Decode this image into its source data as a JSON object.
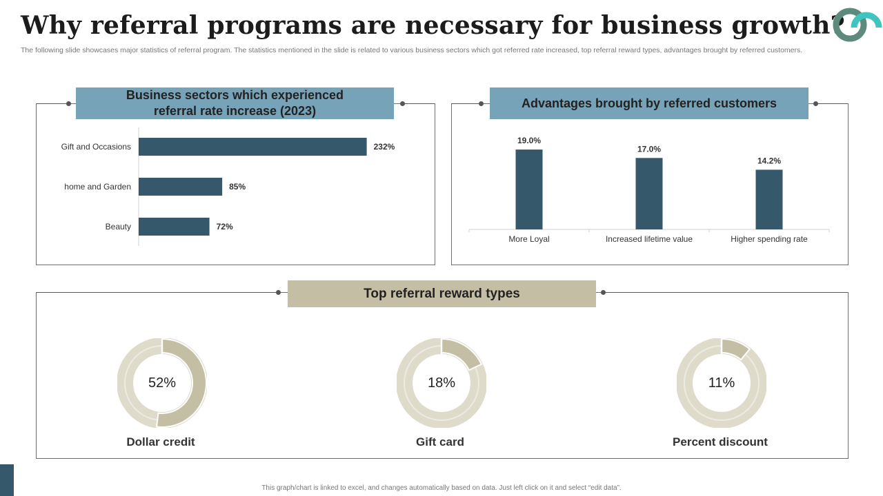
{
  "page": {
    "title": "Why referral programs are necessary for business growth?",
    "subtitle": "The following slide showcases major statistics of referral program. The statistics mentioned in the slide is related to various business sectors which got referred rate increased, top referral reward types, advantages brought by referred customers.",
    "footer": "This graph/chart is linked to excel, and changes automatically based on data. Just left click on it and select “edit data”."
  },
  "colors": {
    "bar": "#35586a",
    "header_blue": "#77a3b9",
    "header_beige": "#c3bea4",
    "donut_fill": "#c3bea4",
    "donut_track": "#dedbcb",
    "logo_dark": "#5e8a7e",
    "logo_accent": "#3fc4c0"
  },
  "icons": {
    "logo": "company-logo-icon"
  },
  "panels": {
    "sectors": {
      "title": "Business sectors which experienced referral rate increase (2023)"
    },
    "advantages": {
      "title": "Advantages brought by referred customers"
    },
    "rewards": {
      "title": "Top referral reward types"
    }
  },
  "chart_data": [
    {
      "type": "bar",
      "orientation": "horizontal",
      "title": "Business sectors which experienced referral rate increase (2023)",
      "categories": [
        "Gift and Occasions",
        "home and Garden",
        "Beauty"
      ],
      "values": [
        232,
        85,
        72
      ],
      "value_labels": [
        "232%",
        "85%",
        "72%"
      ],
      "unit": "%",
      "xlim": [
        0,
        240
      ],
      "grid": false
    },
    {
      "type": "bar",
      "orientation": "vertical",
      "title": "Advantages brought by referred customers",
      "categories": [
        "More Loyal",
        "Increased lifetime value",
        "Higher spending rate"
      ],
      "values": [
        19.0,
        17.0,
        14.2
      ],
      "value_labels": [
        "19.0%",
        "17.0%",
        "14.2%"
      ],
      "unit": "%",
      "ylim": [
        0,
        20
      ],
      "grid": false
    },
    {
      "type": "pie",
      "style": "donut",
      "title": "Top referral reward types",
      "categories": [
        "Dollar credit",
        "Gift card",
        "Percent discount"
      ],
      "values": [
        52,
        18,
        11
      ],
      "value_labels": [
        "52%",
        "18%",
        "11%"
      ],
      "unit": "%"
    }
  ]
}
